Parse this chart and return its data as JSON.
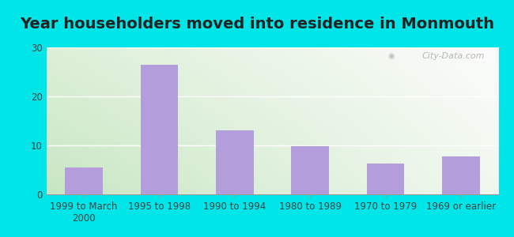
{
  "title": "Year householders moved into residence in Monmouth",
  "categories": [
    "1999 to March\n2000",
    "1995 to 1998",
    "1990 to 1994",
    "1980 to 1989",
    "1970 to 1979",
    "1969 or earlier"
  ],
  "values": [
    5.5,
    26.5,
    13.0,
    9.8,
    6.3,
    7.7
  ],
  "bar_color": "#b39ddb",
  "background_outer": "#00e5e8",
  "background_inner_left": "#d6ecd2",
  "background_inner_right": "#f5f5f5",
  "ylim": [
    0,
    30
  ],
  "yticks": [
    0,
    10,
    20,
    30
  ],
  "title_fontsize": 14,
  "tick_fontsize": 8.5,
  "watermark": "City-Data.com",
  "grid_color": "#d0d8c8"
}
